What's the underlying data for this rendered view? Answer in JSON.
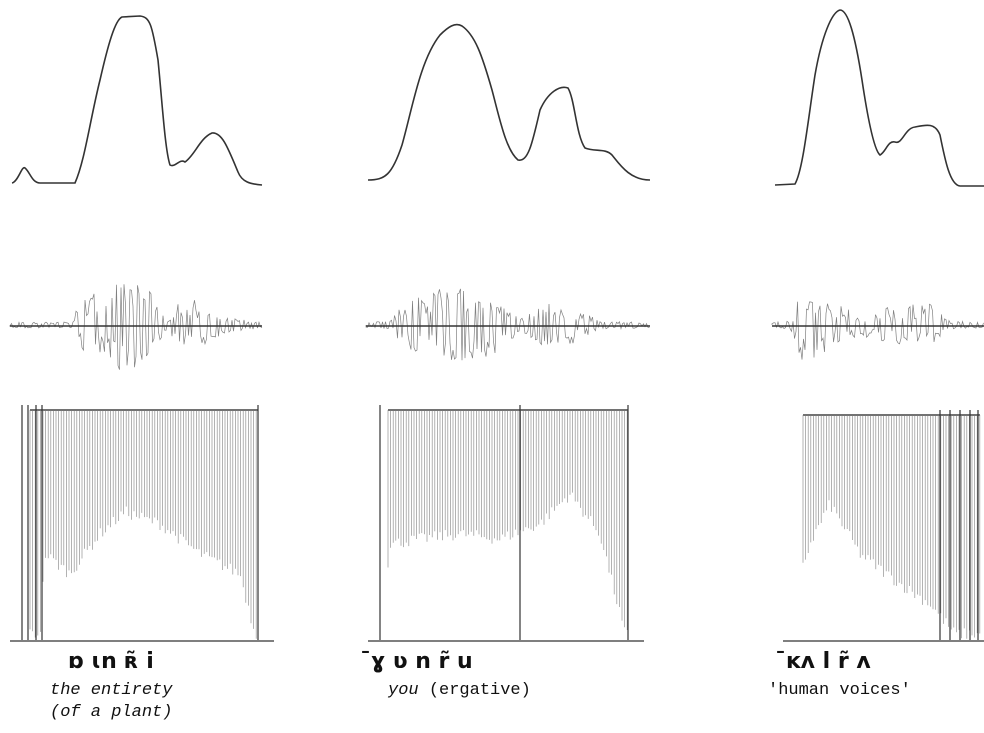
{
  "panels": [
    {
      "transcription": "ɒ ɩn ʀ̃ i",
      "gloss_lines": [
        "the entirety",
        "(of a plant)"
      ]
    },
    {
      "transcription": "¯ɣ ʋ  n r̃  u",
      "gloss_italic": "you",
      "gloss_plain": "(ergative)"
    },
    {
      "transcription": "¯ĸʌ l r̃ ʌ",
      "gloss": "'human voices'"
    }
  ]
}
